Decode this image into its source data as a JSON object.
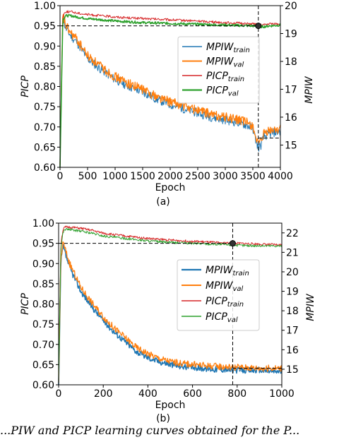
{
  "chart_data": [
    {
      "type": "line",
      "panel_label": "(a)",
      "xlabel": "Epoch",
      "ylabel_left": "PICP",
      "ylabel_right": "MPIW",
      "xlim": [
        0,
        4000
      ],
      "ylim_left": [
        0.6,
        1.0
      ],
      "ylim_right": [
        14.2,
        20.0
      ],
      "x_ticks": [
        "0",
        "500",
        "1000",
        "1500",
        "2000",
        "2500",
        "3000",
        "3500",
        "4000"
      ],
      "y_left_ticks": [
        "0.60",
        "0.65",
        "0.70",
        "0.75",
        "0.80",
        "0.85",
        "0.90",
        "0.95",
        "1.00"
      ],
      "y_right_ticks": [
        "15",
        "16",
        "17",
        "18",
        "19",
        "20"
      ],
      "legend_position": "center-right",
      "series": [
        {
          "name": "MPIW_train",
          "axis": "right",
          "color": "#1f77b4",
          "x": [
            0,
            50,
            100,
            200,
            300,
            400,
            500,
            750,
            1000,
            1250,
            1500,
            1750,
            2000,
            2250,
            2500,
            2750,
            3000,
            3250,
            3400,
            3500,
            3550,
            3600,
            3650,
            3700,
            3800,
            3900,
            4000
          ],
          "y": [
            14.2,
            19.6,
            19.2,
            18.9,
            18.7,
            18.4,
            18.1,
            17.7,
            17.35,
            17.1,
            16.9,
            16.65,
            16.45,
            16.3,
            16.15,
            16.0,
            15.9,
            15.8,
            15.7,
            15.6,
            15.2,
            14.9,
            15.0,
            15.3,
            15.4,
            15.45,
            15.5
          ]
        },
        {
          "name": "MPIW_val",
          "axis": "right",
          "color": "#ff7f0e",
          "x": [
            0,
            50,
            100,
            200,
            300,
            400,
            500,
            750,
            1000,
            1250,
            1500,
            1750,
            2000,
            2250,
            2500,
            2750,
            3000,
            3250,
            3400,
            3500,
            3550,
            3600,
            3650,
            3700,
            3800,
            3900,
            4000
          ],
          "y": [
            14.3,
            19.7,
            19.3,
            19.0,
            18.8,
            18.5,
            18.2,
            17.8,
            17.45,
            17.2,
            17.0,
            16.75,
            16.55,
            16.4,
            16.25,
            16.1,
            16.0,
            15.9,
            15.8,
            15.7,
            15.3,
            15.0,
            15.1,
            15.4,
            15.5,
            15.55,
            15.6
          ]
        },
        {
          "name": "PICP_train",
          "axis": "left",
          "color": "#d62728",
          "x": [
            0,
            50,
            100,
            200,
            300,
            500,
            750,
            1000,
            1500,
            2000,
            2500,
            3000,
            3500,
            3600,
            3700,
            3800,
            4000
          ],
          "y": [
            0.62,
            0.975,
            0.985,
            0.985,
            0.982,
            0.978,
            0.975,
            0.972,
            0.968,
            0.965,
            0.962,
            0.958,
            0.955,
            0.952,
            0.952,
            0.955,
            0.955
          ]
        },
        {
          "name": "PICP_val",
          "axis": "left",
          "color": "#2ca02c",
          "x": [
            0,
            50,
            100,
            200,
            300,
            500,
            750,
            1000,
            1500,
            2000,
            2500,
            3000,
            3500,
            3600,
            3700,
            3800,
            4000
          ],
          "y": [
            0.6,
            0.965,
            0.975,
            0.975,
            0.972,
            0.968,
            0.965,
            0.962,
            0.958,
            0.956,
            0.954,
            0.952,
            0.95,
            0.948,
            0.948,
            0.95,
            0.952
          ]
        }
      ],
      "markers": [
        {
          "type": "hline",
          "axis": "left",
          "y": 0.95,
          "x_to": 3600
        },
        {
          "type": "vline",
          "x": 3600
        },
        {
          "type": "hline",
          "axis": "right",
          "y": 15.25,
          "x_from": 3600
        },
        {
          "type": "point",
          "x": 3600,
          "y": 0.95
        }
      ]
    },
    {
      "type": "line",
      "panel_label": "(b)",
      "xlabel": "Epoch",
      "ylabel_left": "PICP",
      "ylabel_right": "MPIW",
      "xlim": [
        0,
        1000
      ],
      "ylim_left": [
        0.6,
        1.0
      ],
      "ylim_right": [
        14.2,
        22.5
      ],
      "x_ticks": [
        "0",
        "200",
        "400",
        "600",
        "800",
        "1000"
      ],
      "y_left_ticks": [
        "0.60",
        "0.65",
        "0.70",
        "0.75",
        "0.80",
        "0.85",
        "0.90",
        "0.95",
        "1.00"
      ],
      "y_right_ticks": [
        "15",
        "16",
        "17",
        "18",
        "19",
        "20",
        "21",
        "22"
      ],
      "legend_position": "center-right",
      "series": [
        {
          "name": "MPIW_train",
          "axis": "right",
          "color": "#1f77b4",
          "x": [
            0,
            10,
            20,
            50,
            100,
            150,
            200,
            250,
            300,
            350,
            400,
            450,
            500,
            550,
            600,
            650,
            700,
            750,
            780,
            800,
            850,
            900,
            950,
            1000
          ],
          "y": [
            14.2,
            20.5,
            21.3,
            20.2,
            19.0,
            18.2,
            17.5,
            16.9,
            16.4,
            15.9,
            15.6,
            15.4,
            15.25,
            15.15,
            15.1,
            15.05,
            15.0,
            15.0,
            14.95,
            14.95,
            14.95,
            14.95,
            14.9,
            14.9
          ]
        },
        {
          "name": "MPIW_val",
          "axis": "right",
          "color": "#ff7f0e",
          "x": [
            0,
            10,
            20,
            50,
            100,
            150,
            200,
            250,
            300,
            350,
            400,
            450,
            500,
            550,
            600,
            650,
            700,
            750,
            780,
            800,
            850,
            900,
            950,
            1000
          ],
          "y": [
            14.3,
            20.7,
            21.5,
            20.4,
            19.2,
            18.4,
            17.7,
            17.1,
            16.6,
            16.1,
            15.8,
            15.55,
            15.4,
            15.3,
            15.25,
            15.2,
            15.15,
            15.12,
            15.1,
            15.1,
            15.08,
            15.05,
            15.05,
            15.05
          ]
        },
        {
          "name": "PICP_train",
          "axis": "left",
          "color": "#d62728",
          "x": [
            0,
            10,
            20,
            30,
            50,
            100,
            150,
            200,
            300,
            400,
            500,
            600,
            700,
            780,
            800,
            900,
            1000
          ],
          "y": [
            0.62,
            0.95,
            0.985,
            0.99,
            0.99,
            0.987,
            0.982,
            0.975,
            0.968,
            0.962,
            0.958,
            0.955,
            0.952,
            0.95,
            0.95,
            0.948,
            0.946
          ]
        },
        {
          "name": "PICP_val",
          "axis": "left",
          "color": "#2ca02c",
          "x": [
            0,
            10,
            20,
            30,
            50,
            100,
            150,
            200,
            300,
            400,
            500,
            600,
            700,
            780,
            800,
            900,
            1000
          ],
          "y": [
            0.6,
            0.94,
            0.978,
            0.985,
            0.984,
            0.98,
            0.975,
            0.968,
            0.962,
            0.956,
            0.952,
            0.95,
            0.948,
            0.946,
            0.945,
            0.944,
            0.944
          ]
        }
      ],
      "markers": [
        {
          "type": "hline",
          "axis": "left",
          "y": 0.95,
          "x_to": 780
        },
        {
          "type": "vline",
          "x": 780
        },
        {
          "type": "hline",
          "axis": "right",
          "y": 15.05,
          "x_from": 780
        },
        {
          "type": "point",
          "x": 780,
          "y": 0.95
        }
      ]
    }
  ],
  "caption": "...PIW and PICP learning curves obtained for the P..."
}
